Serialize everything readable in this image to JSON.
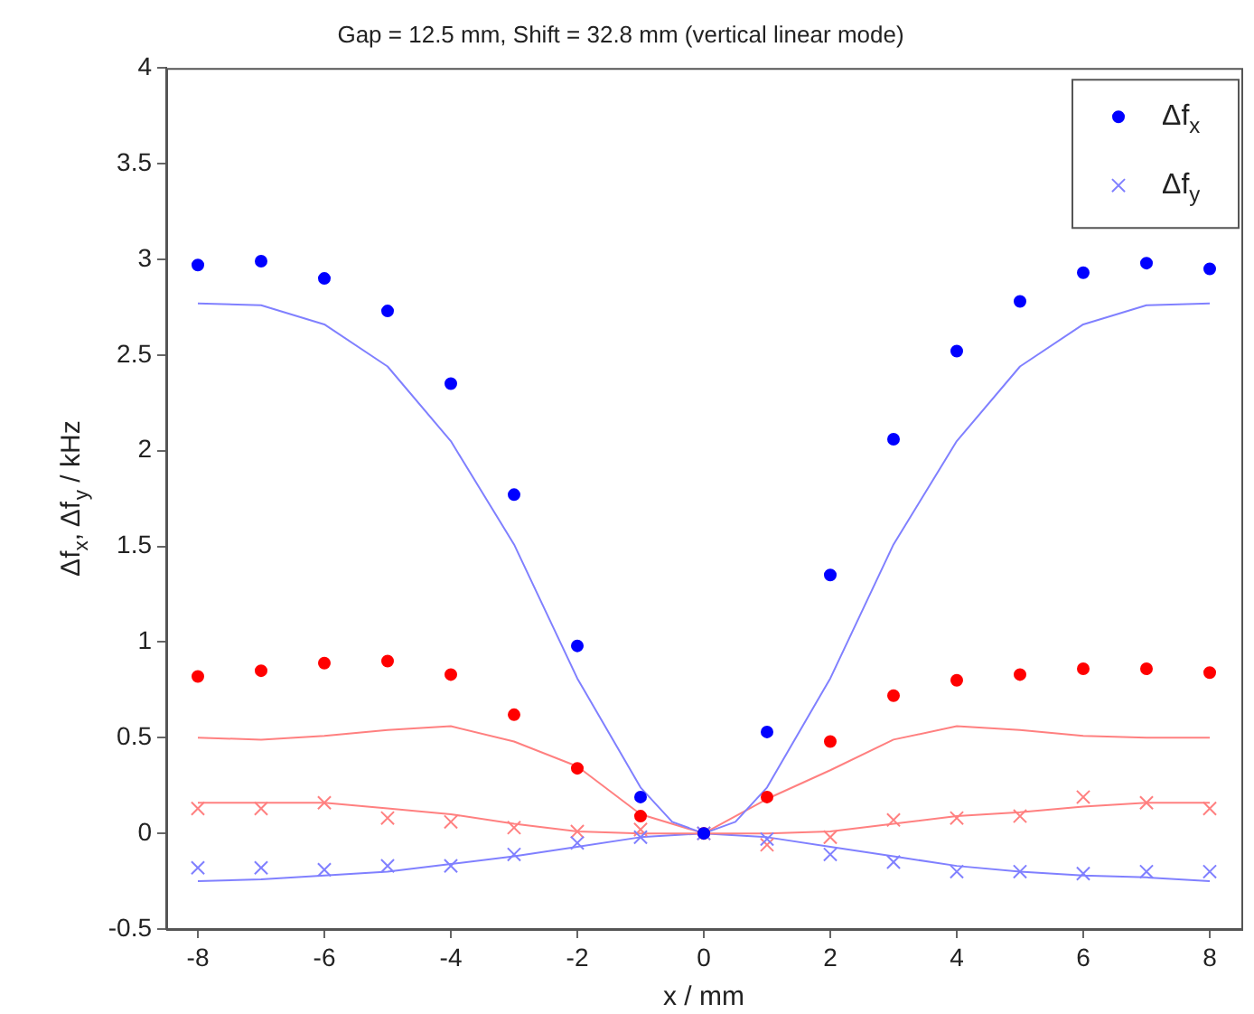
{
  "chart_data": {
    "type": "scatter",
    "title": "Gap = 12.5 mm, Shift = 32.8 mm (vertical linear mode)",
    "xlabel": "x / mm",
    "ylabel": "Δf$_{x}$, Δf$_{y}$ / kHz",
    "x": [
      -8,
      -7,
      -6,
      -5,
      -4,
      -3,
      -2,
      -1,
      0,
      1,
      2,
      3,
      4,
      5,
      6,
      7,
      8
    ],
    "xlim": [
      -8.5,
      8.5
    ],
    "xticks": [
      -8,
      -6,
      -4,
      -2,
      0,
      2,
      4,
      6,
      8
    ],
    "ylim": [
      -0.5,
      4
    ],
    "yticks": [
      -0.5,
      0,
      0.5,
      1,
      1.5,
      2,
      2.5,
      3,
      3.5,
      4
    ],
    "grid": false,
    "legend": "top right",
    "series": [
      {
        "name": "Δf$_{x}$",
        "type": "scatter",
        "marker": "circle",
        "color": "#0000ff",
        "values": [
          2.97,
          2.99,
          2.9,
          2.73,
          2.35,
          1.77,
          0.98,
          0.19,
          0,
          0.53,
          1.35,
          2.06,
          2.52,
          2.78,
          2.93,
          2.98,
          2.95
        ]
      },
      {
        "name": "Δf$_{y}$",
        "type": "scatter",
        "marker": "cross",
        "color": "#8080ff",
        "values": [
          -0.18,
          -0.18,
          -0.19,
          -0.17,
          -0.17,
          -0.11,
          -0.05,
          -0.02,
          0,
          -0.03,
          -0.11,
          -0.15,
          -0.2,
          -0.2,
          -0.21,
          -0.2,
          -0.2
        ]
      },
      {
        "type": "scatter",
        "marker": "circle",
        "color": "#ff0000",
        "values": [
          0.82,
          0.85,
          0.89,
          0.9,
          0.83,
          0.62,
          0.34,
          0.09,
          0,
          0.19,
          0.48,
          0.72,
          0.8,
          0.83,
          0.86,
          0.86,
          0.84
        ]
      },
      {
        "type": "scatter",
        "marker": "cross",
        "color": "#ff8080",
        "values": [
          0.13,
          0.13,
          0.16,
          0.08,
          0.06,
          0.03,
          0.01,
          0.02,
          0,
          -0.06,
          -0.02,
          0.07,
          0.08,
          0.09,
          0.19,
          0.16,
          0.13
        ]
      },
      {
        "type": "line",
        "marker": "none",
        "color": "#8080ff",
        "x": [
          -8,
          -7,
          -6,
          -5,
          -4,
          -3,
          -2,
          -1,
          -0.5,
          0,
          0.5,
          1,
          2,
          3,
          4,
          5,
          6,
          7,
          8
        ],
        "values": [
          2.77,
          2.76,
          2.66,
          2.44,
          2.05,
          1.51,
          0.81,
          0.24,
          0.06,
          0,
          0.06,
          0.24,
          0.81,
          1.51,
          2.05,
          2.44,
          2.66,
          2.76,
          2.77
        ]
      },
      {
        "type": "line",
        "marker": "none",
        "color": "#ff8080",
        "x": [
          -8,
          -7,
          -6,
          -5,
          -4,
          -3,
          -2,
          -1,
          0,
          1,
          2,
          3,
          4,
          5,
          6,
          7,
          8
        ],
        "values": [
          0.5,
          0.49,
          0.51,
          0.54,
          0.56,
          0.48,
          0.35,
          0.1,
          0,
          0.18,
          0.33,
          0.49,
          0.56,
          0.54,
          0.51,
          0.5,
          0.5
        ]
      },
      {
        "type": "line",
        "marker": "none",
        "color": "#ff8080",
        "x": [
          -8,
          -7,
          -6,
          -5,
          -4,
          -3,
          -2,
          -1,
          0,
          1,
          2,
          3,
          4,
          5,
          6,
          7,
          8
        ],
        "values": [
          0.16,
          0.16,
          0.16,
          0.13,
          0.1,
          0.05,
          0.01,
          0,
          0,
          0,
          0.01,
          0.05,
          0.09,
          0.11,
          0.14,
          0.16,
          0.16
        ]
      },
      {
        "type": "line",
        "marker": "none",
        "color": "#8080ff",
        "x": [
          -8,
          -7,
          -6,
          -5,
          -4,
          -3,
          -2,
          -1,
          0,
          1,
          2,
          3,
          4,
          5,
          6,
          7,
          8
        ],
        "values": [
          -0.25,
          -0.24,
          -0.22,
          -0.2,
          -0.16,
          -0.12,
          -0.07,
          -0.02,
          0,
          -0.02,
          -0.07,
          -0.12,
          -0.17,
          -0.2,
          -0.22,
          -0.23,
          -0.25
        ]
      }
    ]
  }
}
